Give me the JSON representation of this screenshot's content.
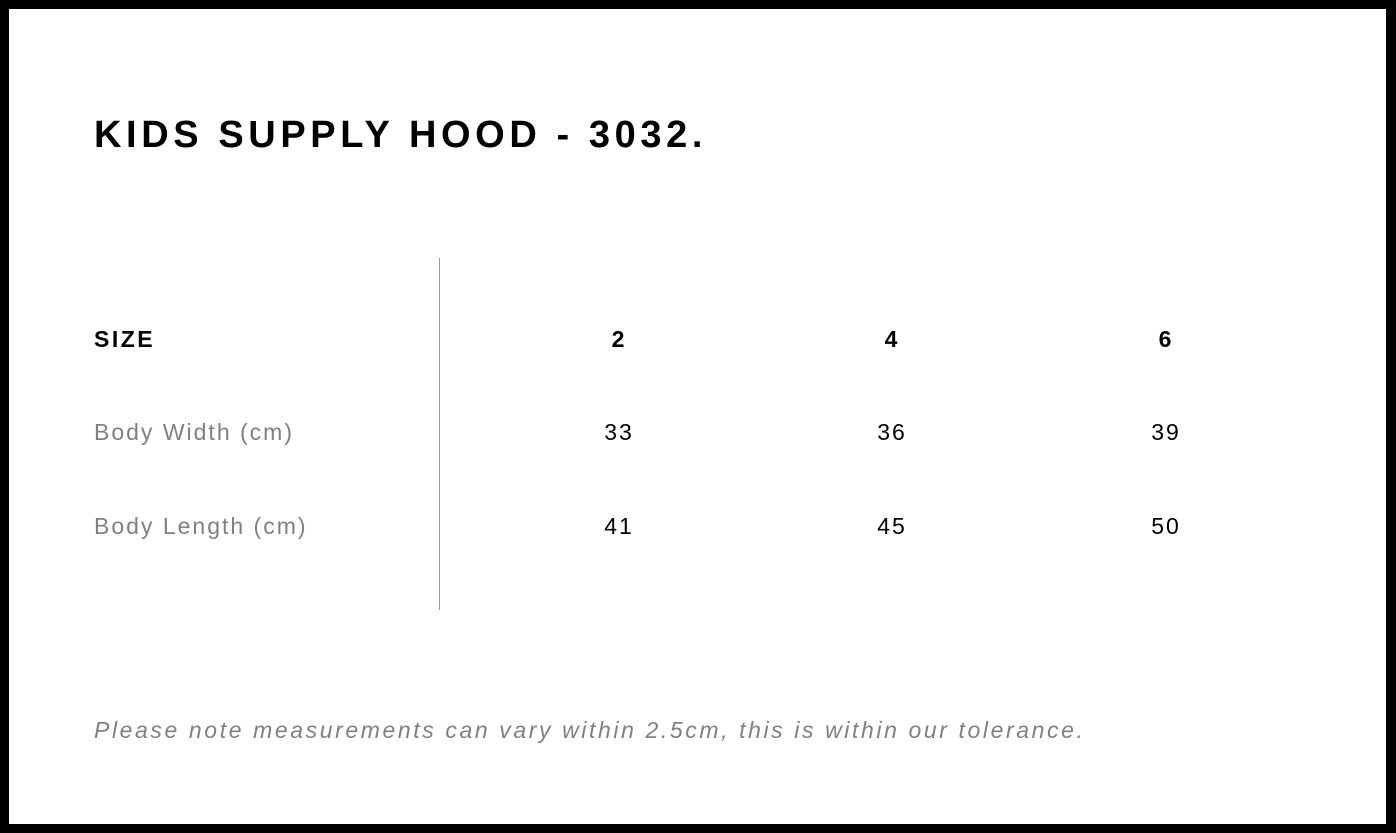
{
  "title": "KIDS SUPPLY HOOD - 3032.",
  "table": {
    "header": {
      "label": "SIZE",
      "sizes": [
        "2",
        "4",
        "6"
      ]
    },
    "rows": [
      {
        "label": "Body Width (cm)",
        "values": [
          "33",
          "36",
          "39"
        ]
      },
      {
        "label": "Body Length (cm)",
        "values": [
          "41",
          "45",
          "50"
        ]
      }
    ]
  },
  "note": "Please note measurements can vary within 2.5cm, this is within our tolerance."
}
